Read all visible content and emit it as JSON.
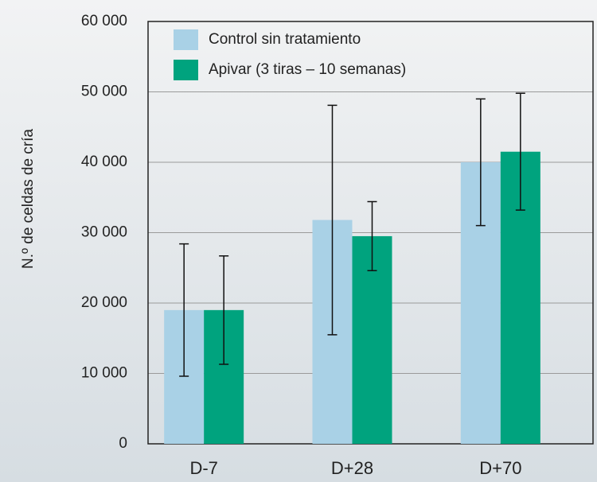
{
  "chart_data": {
    "type": "bar",
    "y_label": "N.º de celdas de cría",
    "categories": [
      "D-7",
      "D+28",
      "D+70"
    ],
    "series": [
      {
        "name": "Control sin tratamiento",
        "color": "#a9d1e6",
        "values": [
          19000,
          31800,
          40000
        ],
        "errors": [
          9400,
          16300,
          9000
        ]
      },
      {
        "name": "Apivar (3 tiras – 10  semanas)",
        "color": "#00a37e",
        "values": [
          19000,
          29500,
          41500
        ],
        "errors": [
          7700,
          4900,
          8300
        ]
      }
    ],
    "ylim": [
      0,
      60000
    ],
    "yticks": [
      0,
      {
        "value": 10000,
        "label": "10 000"
      },
      {
        "value": 20000,
        "label": "20 000"
      },
      {
        "value": 30000,
        "label": "30 000"
      },
      {
        "value": 40000,
        "label": "40 000"
      },
      {
        "value": 50000,
        "label": "50 000"
      },
      {
        "value": 60000,
        "label": "60 000"
      }
    ],
    "grid": true,
    "legend": "top-left"
  }
}
